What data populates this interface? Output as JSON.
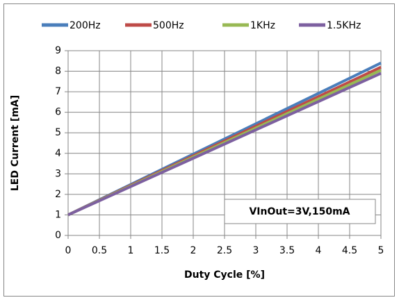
{
  "chart_data": {
    "type": "line",
    "x_label": "Duty Cycle [%]",
    "y_label": "LED Current [mA]",
    "annotation": "VInOut=3V,150mA",
    "x": [
      0,
      5
    ],
    "series": [
      {
        "name": "200Hz",
        "color": "#4a7ebb",
        "values": [
          1,
          8.4
        ]
      },
      {
        "name": "500Hz",
        "color": "#be4b48",
        "values": [
          1,
          8.2
        ]
      },
      {
        "name": "1KHz",
        "color": "#98b954",
        "values": [
          1,
          8.05
        ]
      },
      {
        "name": "1.5KHz",
        "color": "#7d60a0",
        "values": [
          1,
          7.9
        ]
      }
    ],
    "xlim": [
      0,
      5
    ],
    "xticks": [
      0,
      0.5,
      1,
      1.5,
      2,
      2.5,
      3,
      3.5,
      4,
      4.5,
      5
    ],
    "ylim": [
      0,
      9
    ],
    "yticks": [
      0,
      1,
      2,
      3,
      4,
      5,
      6,
      7,
      8,
      9
    ],
    "grid": true,
    "legend": "top"
  }
}
